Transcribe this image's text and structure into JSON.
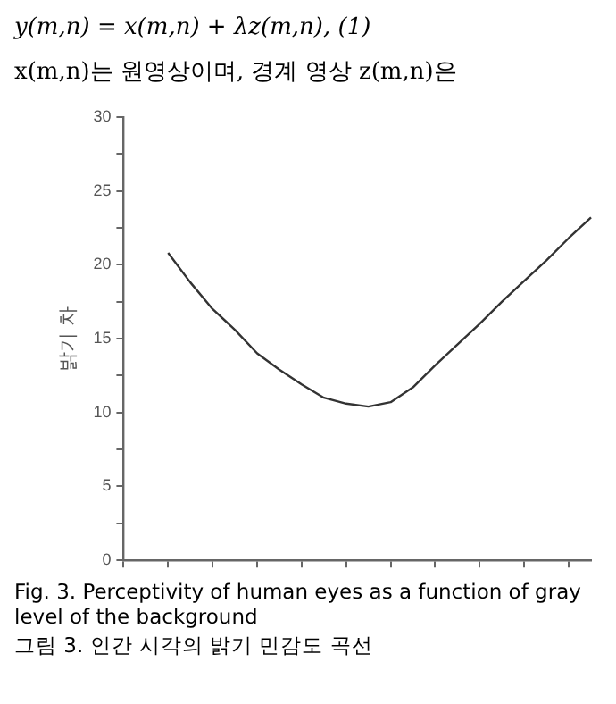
{
  "chart_data": {
    "type": "line",
    "ylabel": "밝기 차",
    "annotations": [
      "y(m,n) = x(m,n) + λz(m,n),   (1)",
      "x(m,n)는 원영상이며, 경계 영상 z(m,n)은",
      "Fig. 3. Perceptivity of human eyes as a function of gray level of the background",
      "그림 3. 인간 시각의 밝기 민감도 곡선"
    ],
    "categories": [
      null,
      null,
      null,
      null,
      null,
      null,
      null,
      null,
      null,
      null,
      null,
      null,
      null,
      null,
      null,
      null,
      null,
      null,
      null,
      null,
      null,
      null
    ],
    "series": [
      {
        "color": "#333333",
        "values": [
          null,
          null,
          20.8,
          18.8,
          17.0,
          15.6,
          14.0,
          12.9,
          11.9,
          11.0,
          10.6,
          10.4,
          10.7,
          11.7,
          13.2,
          14.6,
          16.0,
          17.5,
          18.9,
          20.3,
          21.8,
          23.2
        ]
      }
    ],
    "ylim": [
      0,
      30
    ],
    "yticks": [
      0,
      {
        "value": 2.5,
        "label": null
      },
      5,
      {
        "value": 7.5,
        "label": null
      },
      10,
      {
        "value": 12.5,
        "label": null
      },
      15,
      {
        "value": 17.5,
        "label": null
      },
      20,
      {
        "value": 22.5,
        "label": null
      },
      25,
      {
        "value": 27.5,
        "label": null
      },
      30
    ],
    "tick_labels": "y",
    "grid": false,
    "legend": false,
    "marker": "none",
    "line_style": "solid"
  }
}
